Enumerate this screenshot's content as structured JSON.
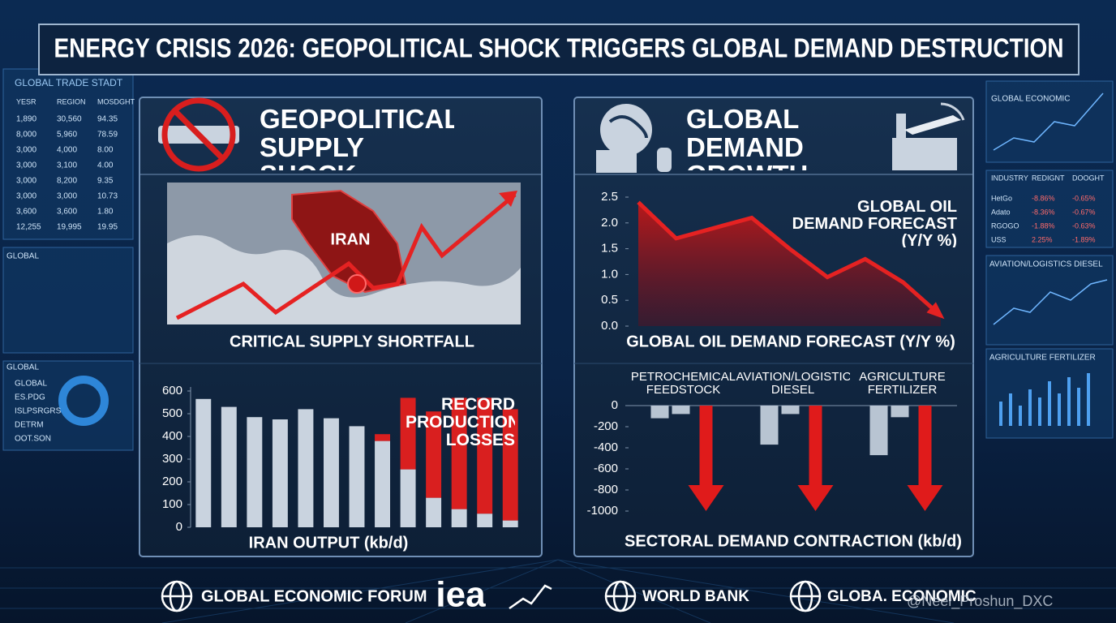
{
  "header": {
    "title": "ENERGY CRISIS 2026: GEOPOLITICAL SHOCK TRIGGERS GLOBAL DEMAND DESTRUCTION"
  },
  "panels": [
    {
      "heading": "GEOPOLITICAL SUPPLY SHOCK",
      "map_label": "IRAN",
      "map_caption": "CRITICAL SUPPLY SHORTFALL"
    },
    {
      "heading": "GLOBAL DEMAND GROWTH IMPACT"
    }
  ],
  "chart_data": [
    {
      "type": "bar",
      "stacked": true,
      "xlabel": "IRAN OUTPUT (kb/d)",
      "annotation": "RECORD PRODUCTION LOSSES",
      "categories": [
        null,
        null,
        null,
        null,
        null,
        null,
        null,
        null,
        null,
        null,
        null,
        null,
        null
      ],
      "series": [
        {
          "color": "#c9d3df",
          "values": [
            565,
            530,
            485,
            475,
            520,
            480,
            445,
            380,
            255,
            130,
            80,
            60,
            30
          ]
        },
        {
          "color": "#d91f1f",
          "values": [
            null,
            null,
            null,
            null,
            null,
            null,
            null,
            30,
            315,
            380,
            490,
            510,
            490
          ]
        }
      ],
      "ylim": [
        0,
        600
      ],
      "yticks": [
        0,
        100,
        200,
        300,
        400,
        500,
        600
      ]
    },
    {
      "type": "line",
      "area": true,
      "annotation": "GLOBAL OIL DEMAND FORECAST (Y/Y %)",
      "xlabel": "GLOBAL OIL DEMAND FORECAST (Y/Y %)",
      "categories": [
        null,
        null,
        null,
        null,
        null,
        null,
        null,
        null,
        null
      ],
      "values": [
        2.4,
        1.7,
        1.9,
        2.1,
        1.5,
        0.95,
        1.3,
        0.85,
        0.2
      ],
      "color": "#e52222",
      "ylim": [
        0,
        2.5
      ],
      "yticks": [
        {
          "value": 0,
          "label": "0.0"
        },
        0.5,
        {
          "value": 1,
          "label": "1.0"
        },
        1.5,
        {
          "value": 2,
          "label": "2.0"
        },
        2.5
      ]
    },
    {
      "type": "bar",
      "xlabel": "SECTORAL DEMAND CONTRACTION (kb/d)",
      "categories": [
        "PETROCHEMICAL FEEDSTOCK",
        "AVIATION/LOGISTICS DIESEL",
        "AGRICULTURE FERTILIZER"
      ],
      "series": [
        {
          "color": "#b8c4d2",
          "values": [
            -120,
            -370,
            -470
          ]
        },
        {
          "color": "#b8c4d2",
          "values": [
            -80,
            -80,
            -110
          ]
        },
        {
          "color": "#e01b1b",
          "marker": "arrow",
          "values": [
            -1000,
            -1000,
            -1000
          ]
        }
      ],
      "ylim": [
        -1100,
        0
      ],
      "yticks": [
        0,
        -200,
        -400,
        -600,
        -800,
        -1000
      ]
    }
  ],
  "side_left": {
    "title": "GLOBAL TRADE STADT",
    "headers": [
      "YESR",
      "REGION",
      "MOSDGHT"
    ],
    "rows": [
      [
        "1,890",
        "30,560",
        "94.35"
      ],
      [
        "8,000",
        "5,960",
        "78.59"
      ],
      [
        "3,000",
        "4,000",
        "8.00"
      ],
      [
        "3,000",
        "3,100",
        "4.00"
      ],
      [
        "3,000",
        "8,200",
        "9.35"
      ],
      [
        "3,000",
        "3,000",
        "10.73"
      ],
      [
        "3,600",
        "3,600",
        "1.80"
      ],
      [
        "12,255",
        "19,995",
        "19.95"
      ]
    ],
    "map_title": "GLOBAL",
    "legend_title": "GLOBAL",
    "legend": [
      "GLOBAL",
      "ES.PDG",
      "ISLPSRGRS",
      "DETRM",
      "OOT.SON"
    ]
  },
  "side_right": {
    "title": "GLOBAL ECONOMIC",
    "headers": [
      "INDUSTRY",
      "REDIGNT",
      "DOOGHT"
    ],
    "rows": [
      [
        "HetGo",
        "-8.86%",
        "-0.65%"
      ],
      [
        "Adato",
        "-8.36%",
        "-0.67%"
      ],
      [
        "RGOGO",
        "-1.88%",
        "-0.63%"
      ],
      [
        "USS",
        "2.25%",
        "-1.89%"
      ]
    ],
    "panel2": "AVIATION/LOGISTICS DIESEL",
    "panel3": "AGRICULTURE FERTILIZER"
  },
  "footer": {
    "logos": [
      "GLOBAL ECONOMIC FORUM",
      "iea",
      "WORLD BANK",
      "GLOBA. ECONOMIC"
    ],
    "watermark": "@Neel_Proshun_DXC"
  }
}
